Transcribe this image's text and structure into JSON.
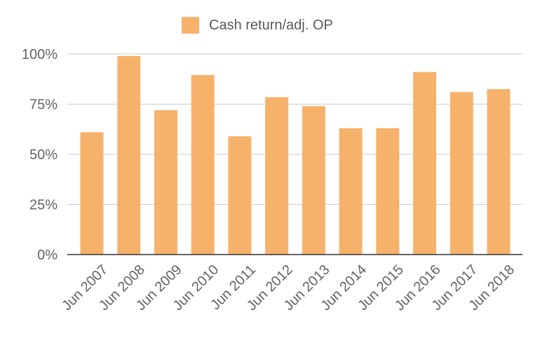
{
  "chart_data": {
    "type": "bar",
    "categories": [
      "Jun 2007",
      "Jun 2008",
      "Jun 2009",
      "Jun 2010",
      "Jun 2011",
      "Jun 2012",
      "Jun 2013",
      "Jun 2014",
      "Jun 2015",
      "Jun 2016",
      "Jun 2017",
      "Jun 2018"
    ],
    "series": [
      {
        "name": "Cash return/adj. OP",
        "values": [
          61,
          99,
          72,
          89.5,
          59,
          78.5,
          74,
          63,
          63,
          91,
          81,
          82.5
        ],
        "color": "#f6b26b"
      }
    ],
    "ylim": [
      0,
      100
    ],
    "yticks": [
      0,
      25,
      50,
      75,
      100
    ],
    "ytick_labels": [
      "0%",
      "25%",
      "50%",
      "75%",
      "100%"
    ],
    "grid": true,
    "legend_position": "top"
  }
}
